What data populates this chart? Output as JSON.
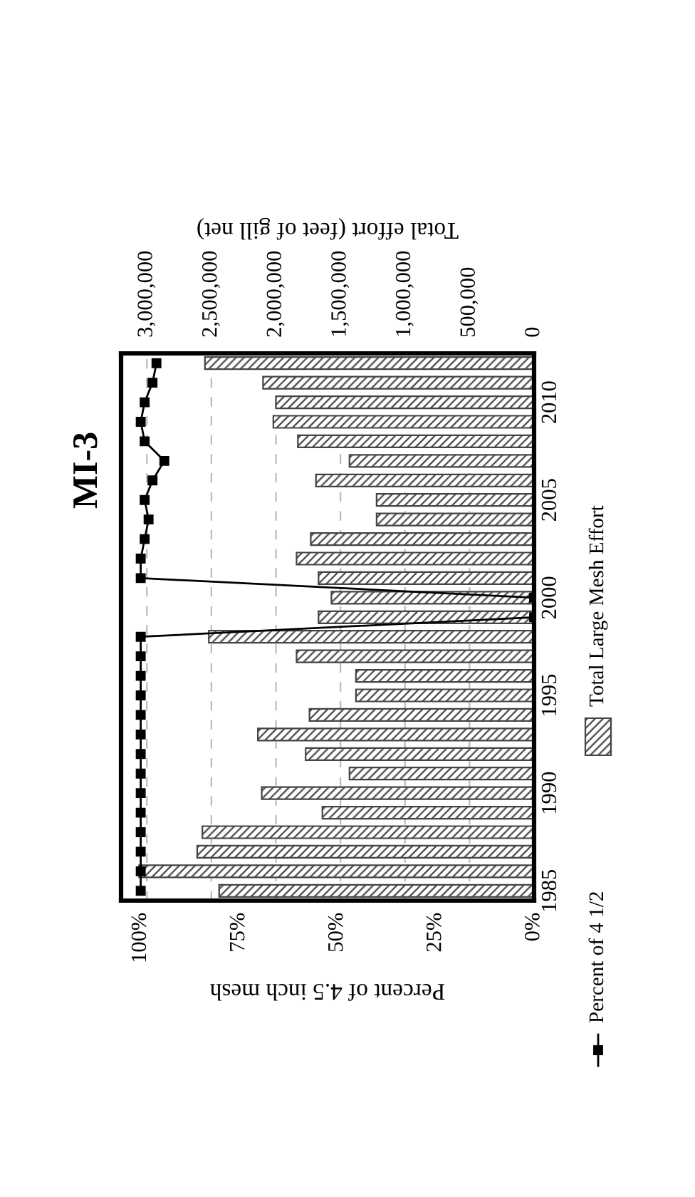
{
  "chart_data": {
    "type": "bar",
    "orientation": "horizontal",
    "title": "MI-3",
    "xlabel": "Percent of 4.5 inch mesh",
    "x2label": "Total effort (feet of gill net)",
    "categories": [
      null,
      null,
      "2010",
      null,
      null,
      null,
      null,
      "2005",
      null,
      null,
      null,
      null,
      "2000",
      null,
      null,
      null,
      null,
      "1995",
      null,
      null,
      null,
      null,
      "1990",
      null,
      null,
      null,
      null,
      "1985"
    ],
    "series": [
      {
        "name": "Total Large Mesh Effort",
        "axis": "x2",
        "color": "#444444",
        "values": [
          2550000,
          2100000,
          2000000,
          2020000,
          1830000,
          1430000,
          1690000,
          1220000,
          1220000,
          1730000,
          1840000,
          1670000,
          1570000,
          1670000,
          2520000,
          1840000,
          1380000,
          1380000,
          1740000,
          2140000,
          1770000,
          1430000,
          2110000,
          1640000,
          2570000,
          2610000,
          3060000,
          2440000
        ]
      },
      {
        "name": "Percent of 4 1/2",
        "type": "line",
        "color": "#000000",
        "marker": "square",
        "values": [
          96,
          97,
          99,
          100,
          99,
          94,
          97,
          99,
          98,
          99,
          100,
          100,
          0,
          0,
          100,
          100,
          100,
          100,
          100,
          100,
          100,
          100,
          100,
          100,
          100,
          100,
          100,
          100
        ]
      }
    ],
    "xlim": [
      105,
      0
    ],
    "xticks": [
      {
        "value": 100,
        "label": "100%"
      },
      {
        "value": 75,
        "label": "75%"
      },
      {
        "value": 50,
        "label": "50%"
      },
      {
        "value": 25,
        "label": "25%"
      },
      {
        "value": 0,
        "label": "0%"
      }
    ],
    "x2lim": [
      3200000,
      0
    ],
    "x2ticks": [
      {
        "value": 3000000,
        "label": "3,000,000"
      },
      {
        "value": 2500000,
        "label": "2,500,000"
      },
      {
        "value": 2000000,
        "label": "2,000,000"
      },
      {
        "value": 1500000,
        "label": "1,500,000"
      },
      {
        "value": 1000000,
        "label": "1,000,000"
      },
      {
        "value": 500000,
        "label": "500,000"
      },
      0
    ],
    "grid": "x2",
    "legend": "right"
  }
}
